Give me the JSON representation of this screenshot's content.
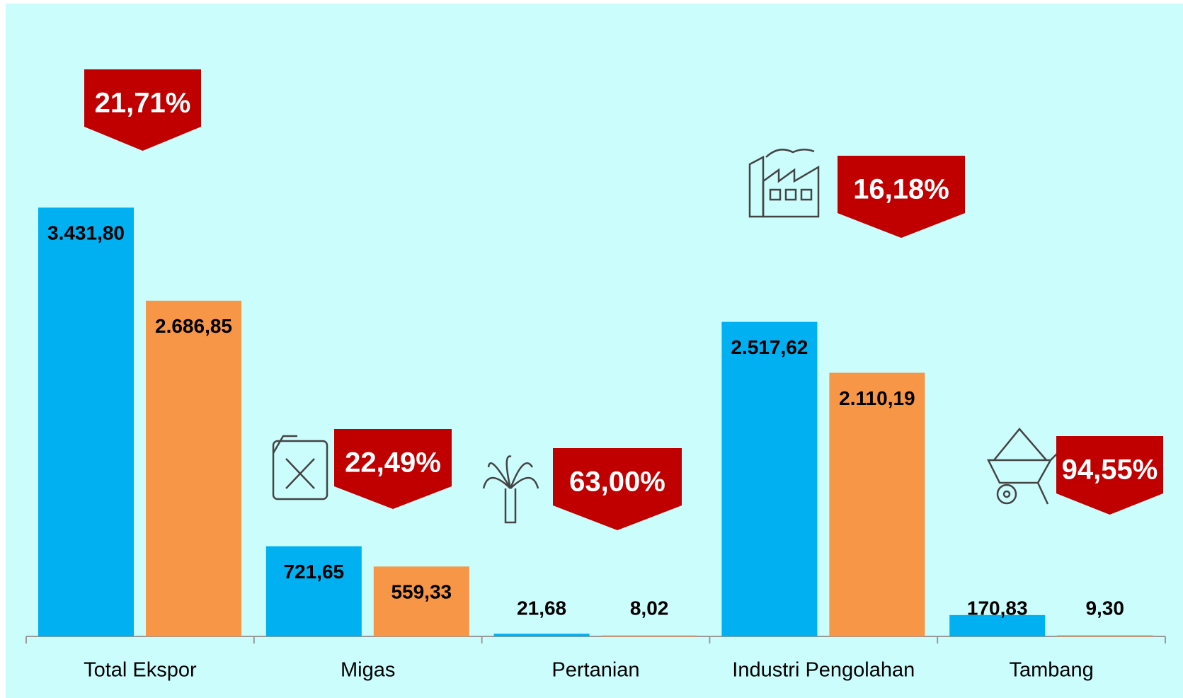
{
  "chart_data": {
    "type": "bar",
    "categories": [
      "Total Ekspor",
      "Migas",
      "Pertanian",
      "Industri Pengolahan",
      "Tambang"
    ],
    "series": [
      {
        "color": "#00b0f0",
        "values": [
          3431.8,
          721.65,
          21.68,
          2517.62,
          170.83
        ],
        "value_labels": [
          "3.431,80",
          "721,65",
          "21,68",
          "2.517,62",
          "170,83"
        ]
      },
      {
        "color": "#f79646",
        "values": [
          2686.85,
          559.33,
          8.02,
          2110.19,
          9.3
        ],
        "value_labels": [
          "2.686,85",
          "559,33",
          "8,02",
          "2.110,19",
          "9,30"
        ]
      }
    ],
    "ylim": [
      0,
      4000
    ],
    "annotations": [
      "21,71%",
      "22,49%",
      "63,00%",
      "16,18%",
      "94,55%"
    ],
    "annotation_color": "#c00000"
  }
}
